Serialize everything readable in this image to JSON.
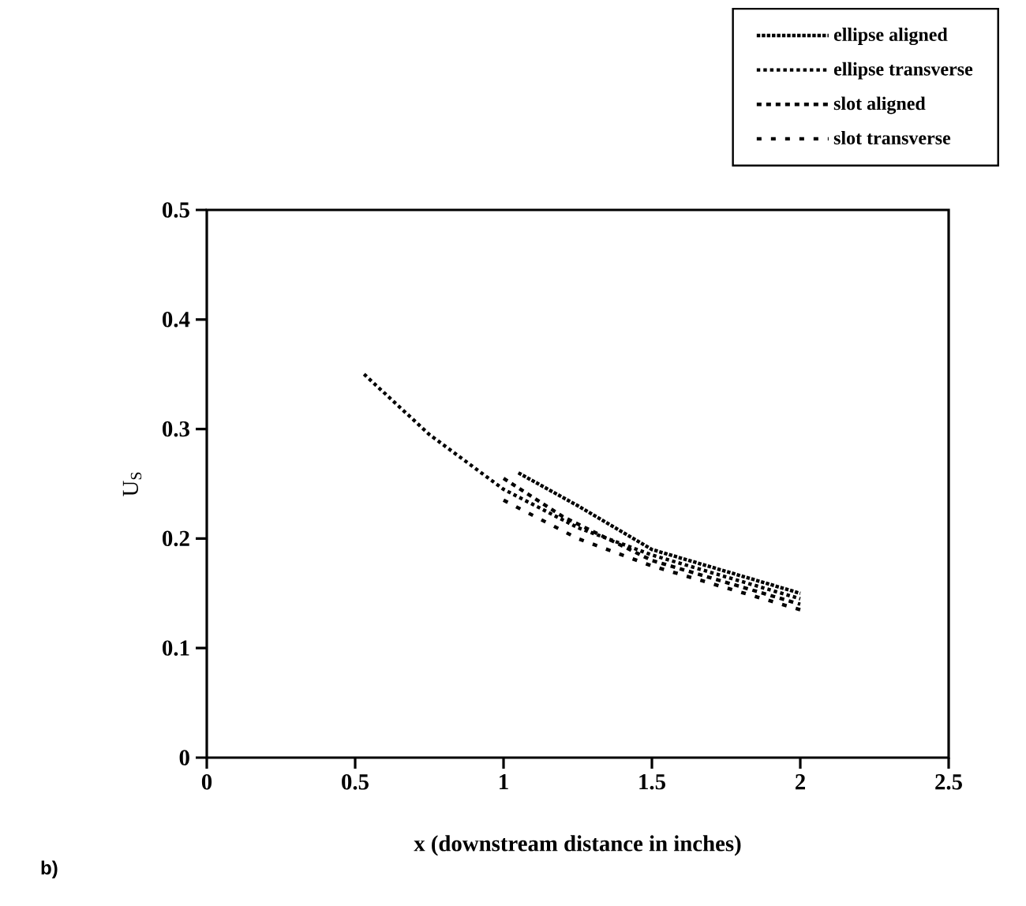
{
  "chart_data": {
    "type": "line",
    "xlabel": "x (downstream distance in inches)",
    "ylabel": "U$_{S}$",
    "annotations": [
      "b)"
    ],
    "xlim": [
      0,
      2.5
    ],
    "ylim": [
      0,
      0.5
    ],
    "xticks": [
      0,
      0.5,
      1,
      1.5,
      2,
      2.5
    ],
    "yticks": [
      0,
      0.1,
      0.2,
      0.3,
      0.4,
      0.5
    ],
    "legend": "top right",
    "grid": false,
    "series": [
      {
        "name": "ellipse aligned",
        "color": "#000000",
        "line_style": "dotted",
        "x": [
          1.05,
          1.25,
          1.5,
          1.75,
          2.0
        ],
        "values": [
          0.26,
          0.23,
          0.19,
          0.17,
          0.15
        ]
      },
      {
        "name": "ellipse transverse",
        "color": "#000000",
        "line_style": "dotted",
        "x": [
          0.53,
          0.75,
          1.0,
          1.25,
          1.5,
          1.75,
          2.0
        ],
        "values": [
          0.35,
          0.295,
          0.245,
          0.21,
          0.185,
          0.165,
          0.145
        ]
      },
      {
        "name": "slot aligned",
        "color": "#000000",
        "line_style": "dashed",
        "x": [
          1.0,
          1.2,
          1.5,
          1.75,
          2.0
        ],
        "values": [
          0.255,
          0.22,
          0.18,
          0.16,
          0.14
        ]
      },
      {
        "name": "slot transverse",
        "color": "#000000",
        "line_style": "dashed",
        "x": [
          1.0,
          1.25,
          1.5,
          1.75,
          2.0
        ],
        "values": [
          0.235,
          0.2,
          0.175,
          0.155,
          0.135
        ]
      }
    ]
  }
}
